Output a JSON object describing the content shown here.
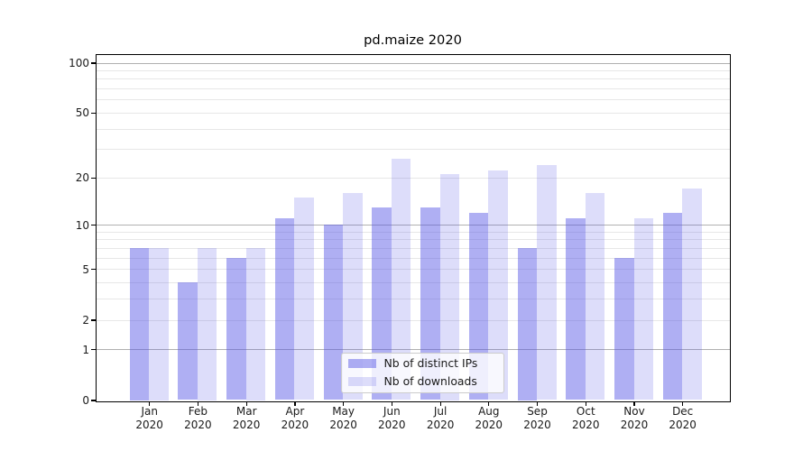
{
  "chart_data": {
    "type": "bar",
    "title": "pd.maize 2020",
    "categories": [
      "Jan 2020",
      "Feb 2020",
      "Mar 2020",
      "Apr 2020",
      "May 2020",
      "Jun 2020",
      "Jul 2020",
      "Aug 2020",
      "Sep 2020",
      "Oct 2020",
      "Nov 2020",
      "Dec 2020"
    ],
    "series": [
      {
        "name": "Nb of distinct IPs",
        "color": "rgba(85,85,230,0.47)",
        "values": [
          7,
          4,
          6,
          11,
          10,
          13,
          13,
          12,
          7,
          11,
          6,
          12
        ]
      },
      {
        "name": "Nb of downloads",
        "color": "rgba(85,85,230,0.20)",
        "values": [
          7,
          7,
          7,
          15,
          16,
          26,
          21,
          22,
          24,
          16,
          11,
          17
        ]
      }
    ],
    "xlabel": "",
    "ylabel": "",
    "yscale": "log1p",
    "ylim": [
      0,
      114
    ],
    "yticks": [
      0,
      1,
      2,
      5,
      10,
      20,
      50,
      100
    ],
    "major_gridlines": [
      1,
      10,
      100
    ],
    "minor_gridlines": [
      2,
      3,
      4,
      5,
      6,
      7,
      8,
      9,
      20,
      30,
      40,
      50,
      60,
      70,
      80,
      90
    ],
    "grid": "horizontal",
    "legend_position": "lower-center",
    "colors": {
      "grid_major": "#b0b0b0",
      "grid_minor": "#e7e7e7",
      "axis": "#000000",
      "text": "#1a1a1a",
      "legend_border": "#cccccc",
      "legend_background": "rgba(255,255,255,0.8)"
    }
  }
}
